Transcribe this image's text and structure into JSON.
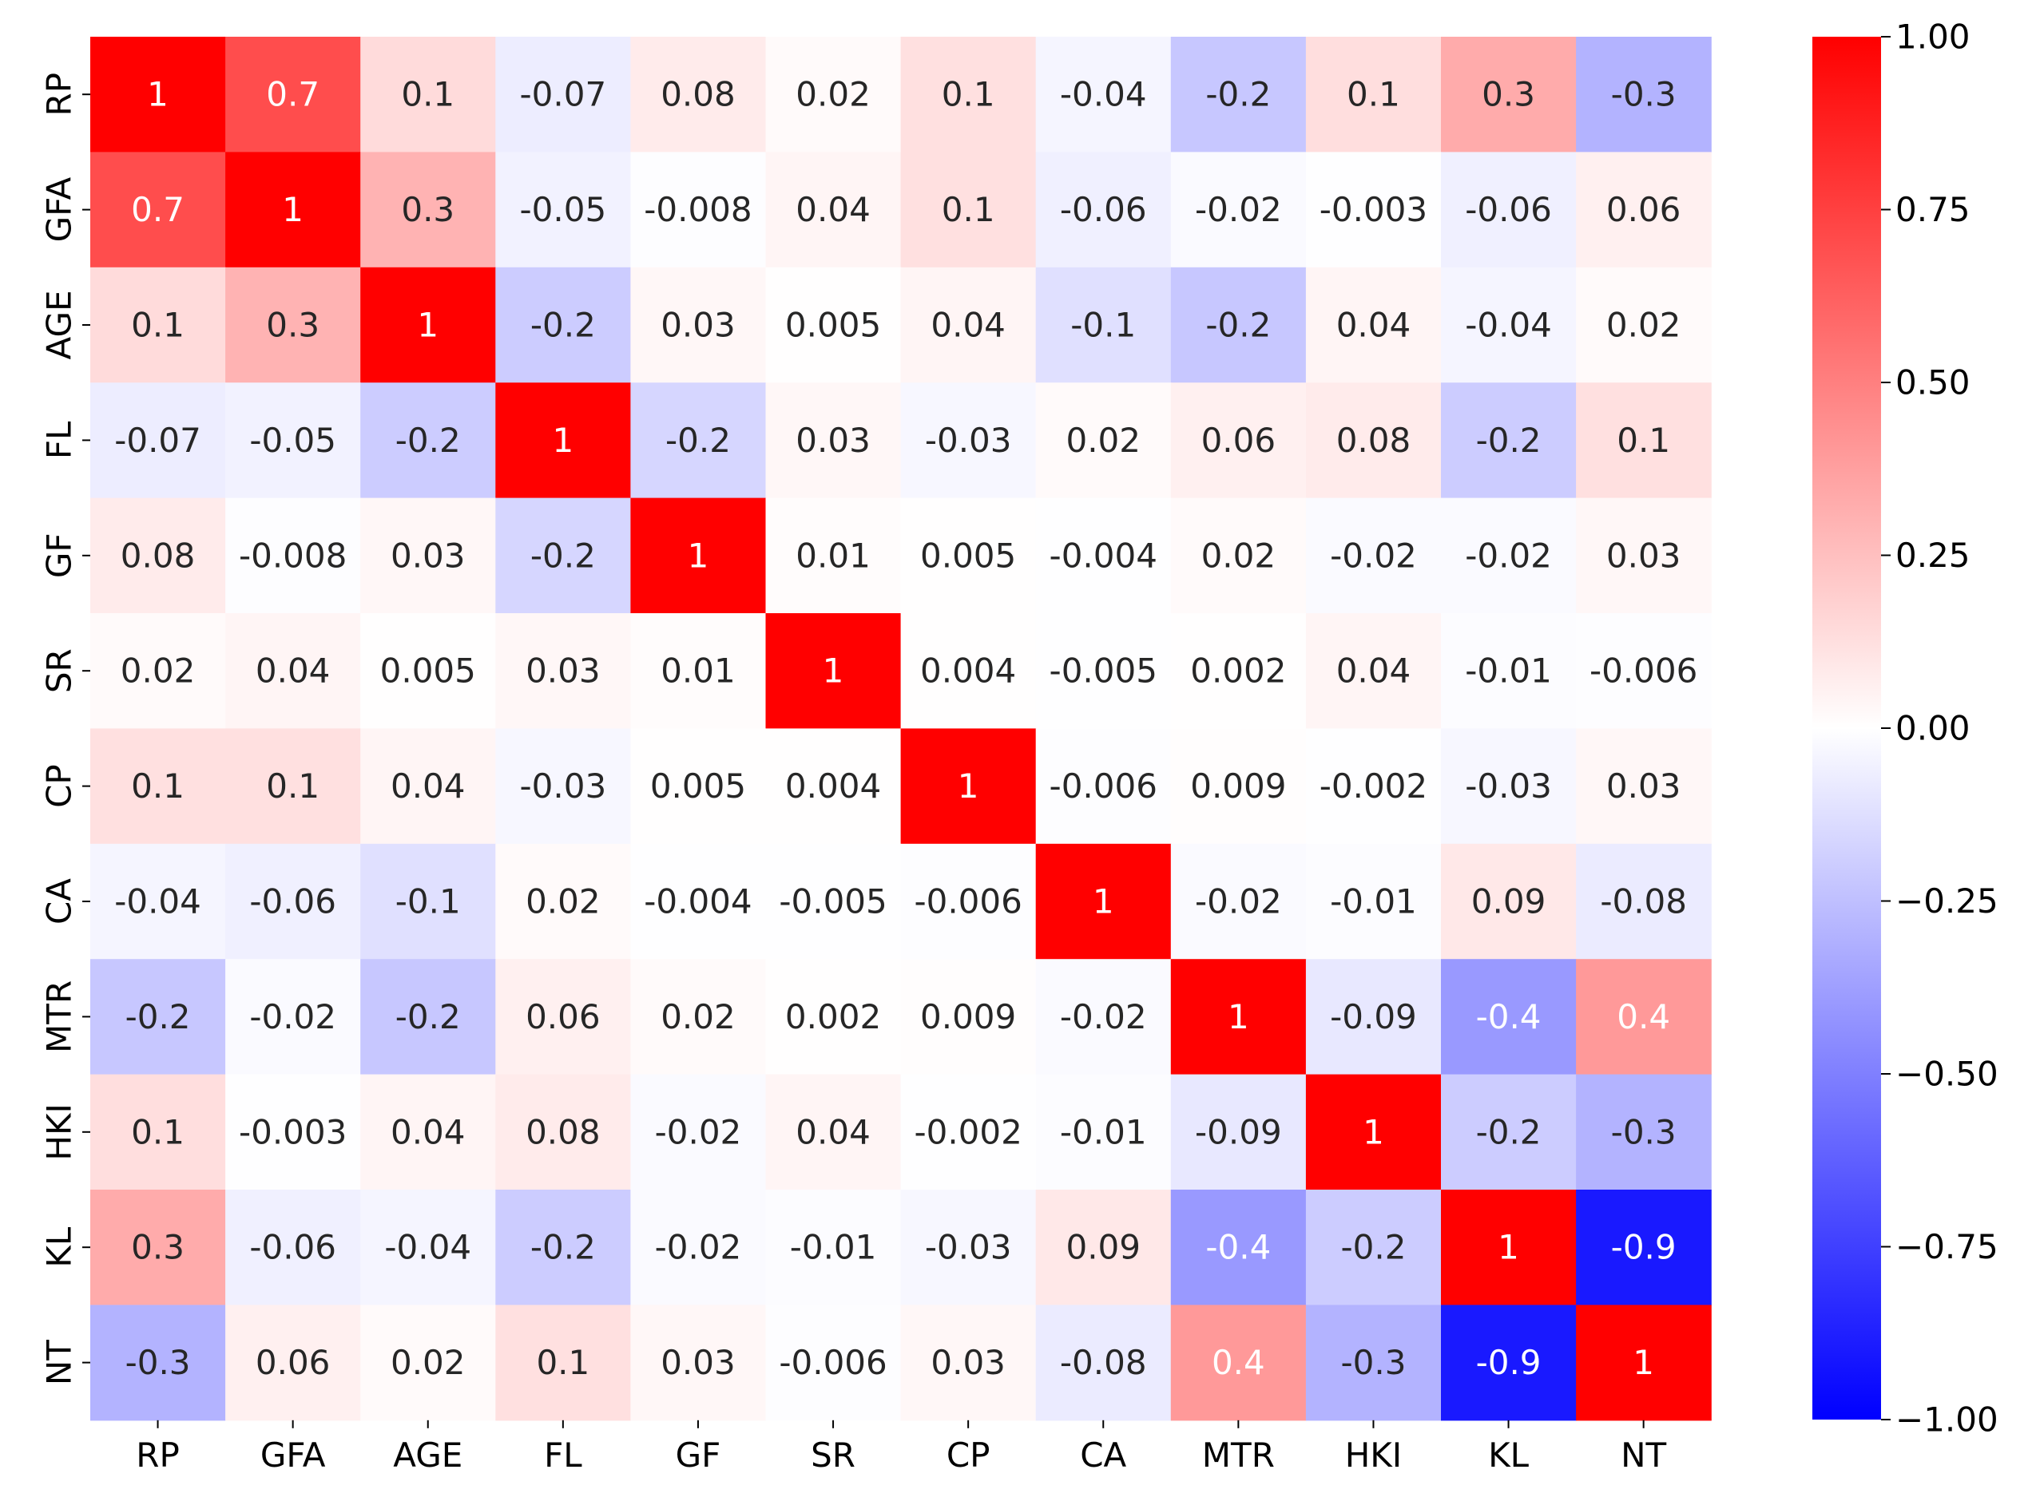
{
  "chart_data": {
    "type": "heatmap",
    "title": "",
    "xlabel": "",
    "ylabel": "",
    "rows": [
      "RP",
      "GFA",
      "AGE",
      "FL",
      "GF",
      "SR",
      "CP",
      "CA",
      "MTR",
      "HKI",
      "KL",
      "NT"
    ],
    "cols": [
      "RP",
      "GFA",
      "AGE",
      "FL",
      "GF",
      "SR",
      "CP",
      "CA",
      "MTR",
      "HKI",
      "KL",
      "NT"
    ],
    "labels": [
      [
        "1",
        "0.7",
        "0.1",
        "-0.07",
        "0.08",
        "0.02",
        "0.1",
        "-0.04",
        "-0.2",
        "0.1",
        "0.3",
        "-0.3"
      ],
      [
        "0.7",
        "1",
        "0.3",
        "-0.05",
        "-0.008",
        "0.04",
        "0.1",
        "-0.06",
        "-0.02",
        "-0.003",
        "-0.06",
        "0.06"
      ],
      [
        "0.1",
        "0.3",
        "1",
        "-0.2",
        "0.03",
        "0.005",
        "0.04",
        "-0.1",
        "-0.2",
        "0.04",
        "-0.04",
        "0.02"
      ],
      [
        "-0.07",
        "-0.05",
        "-0.2",
        "1",
        "-0.2",
        "0.03",
        "-0.03",
        "0.02",
        "0.06",
        "0.08",
        "-0.2",
        "0.1"
      ],
      [
        "0.08",
        "-0.008",
        "0.03",
        "-0.2",
        "1",
        "0.01",
        "0.005",
        "-0.004",
        "0.02",
        "-0.02",
        "-0.02",
        "0.03"
      ],
      [
        "0.02",
        "0.04",
        "0.005",
        "0.03",
        "0.01",
        "1",
        "0.004",
        "-0.005",
        "0.002",
        "0.04",
        "-0.01",
        "-0.006"
      ],
      [
        "0.1",
        "0.1",
        "0.04",
        "-0.03",
        "0.005",
        "0.004",
        "1",
        "-0.006",
        "0.009",
        "-0.002",
        "-0.03",
        "0.03"
      ],
      [
        "-0.04",
        "-0.06",
        "-0.1",
        "0.02",
        "-0.004",
        "-0.005",
        "-0.006",
        "1",
        "-0.02",
        "-0.01",
        "0.09",
        "-0.08"
      ],
      [
        "-0.2",
        "-0.02",
        "-0.2",
        "0.06",
        "0.02",
        "0.002",
        "0.009",
        "-0.02",
        "1",
        "-0.09",
        "-0.4",
        "0.4"
      ],
      [
        "0.1",
        "-0.003",
        "0.04",
        "0.08",
        "-0.02",
        "0.04",
        "-0.002",
        "-0.01",
        "-0.09",
        "1",
        "-0.2",
        "-0.3"
      ],
      [
        "0.3",
        "-0.06",
        "-0.04",
        "-0.2",
        "-0.02",
        "-0.01",
        "-0.03",
        "0.09",
        "-0.4",
        "-0.2",
        "1",
        "-0.9"
      ],
      [
        "-0.3",
        "0.06",
        "0.02",
        "0.1",
        "0.03",
        "-0.006",
        "0.03",
        "-0.08",
        "0.4",
        "-0.3",
        "-0.9",
        "1"
      ]
    ],
    "values": [
      [
        1.0,
        0.7,
        0.14,
        -0.07,
        0.08,
        0.02,
        0.12,
        -0.04,
        -0.22,
        0.13,
        0.33,
        -0.3
      ],
      [
        0.7,
        1.0,
        0.3,
        -0.05,
        -0.008,
        0.04,
        0.12,
        -0.06,
        -0.02,
        -0.003,
        -0.06,
        0.06
      ],
      [
        0.14,
        0.3,
        1.0,
        -0.2,
        0.03,
        0.005,
        0.04,
        -0.12,
        -0.22,
        0.04,
        -0.04,
        0.02
      ],
      [
        -0.07,
        -0.05,
        -0.2,
        1.0,
        -0.16,
        0.03,
        -0.03,
        0.02,
        0.06,
        0.08,
        -0.2,
        0.12
      ],
      [
        0.08,
        -0.008,
        0.03,
        -0.16,
        1.0,
        0.01,
        0.005,
        -0.004,
        0.02,
        -0.02,
        -0.02,
        0.03
      ],
      [
        0.02,
        0.04,
        0.005,
        0.03,
        0.01,
        1.0,
        0.004,
        -0.005,
        0.002,
        0.04,
        -0.01,
        -0.006
      ],
      [
        0.12,
        0.12,
        0.04,
        -0.03,
        0.005,
        0.004,
        1.0,
        -0.006,
        0.009,
        -0.002,
        -0.03,
        0.03
      ],
      [
        -0.04,
        -0.06,
        -0.12,
        0.02,
        -0.004,
        -0.005,
        -0.006,
        1.0,
        -0.02,
        -0.01,
        0.09,
        -0.08
      ],
      [
        -0.22,
        -0.02,
        -0.22,
        0.06,
        0.02,
        0.002,
        0.009,
        -0.02,
        1.0,
        -0.09,
        -0.4,
        0.4
      ],
      [
        0.13,
        -0.003,
        0.04,
        0.08,
        -0.02,
        0.04,
        -0.002,
        -0.01,
        -0.09,
        1.0,
        -0.2,
        -0.3
      ],
      [
        0.33,
        -0.06,
        -0.04,
        -0.2,
        -0.02,
        -0.01,
        -0.03,
        0.09,
        -0.4,
        -0.2,
        1.0,
        -0.9
      ],
      [
        -0.3,
        0.06,
        0.02,
        0.12,
        0.03,
        -0.006,
        0.03,
        -0.08,
        0.4,
        -0.3,
        -0.9,
        1.0
      ]
    ],
    "vmin": -1.0,
    "vmax": 1.0,
    "colormap": "bwr",
    "colorbar": {
      "ticks": [
        1.0,
        0.75,
        0.5,
        0.25,
        0.0,
        -0.25,
        -0.5,
        -0.75,
        -1.0
      ],
      "tick_labels": [
        "1.00",
        "0.75",
        "0.50",
        "0.25",
        "0.00",
        "−0.25",
        "−0.50",
        "−0.75",
        "−1.00"
      ]
    },
    "colors": {
      "low": "#0000ff",
      "mid": "#ffffff",
      "high": "#ff0000"
    }
  }
}
